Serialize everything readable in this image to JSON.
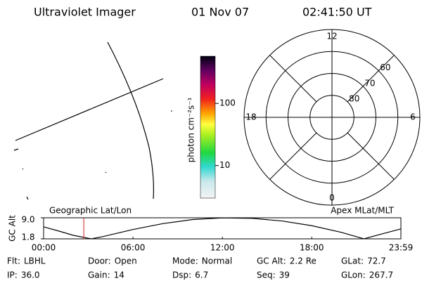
{
  "header": {
    "title": "Ultraviolet Imager",
    "date": "01 Nov 07",
    "time": "02:41:50 UT"
  },
  "colorbar": {
    "label": "photon cm⁻²s⁻¹",
    "scale": "log",
    "lim": [
      3,
      575
    ],
    "ticks": [
      10,
      100
    ]
  },
  "polar": {
    "mlt_labels": [
      12,
      6,
      0,
      18
    ],
    "lat_rings": [
      80,
      70,
      60
    ],
    "lat_limit": 50
  },
  "chart_data": {
    "type": "line",
    "ylabel": "GC Alt",
    "left_title": "Geographic Lat/Lon",
    "right_title": "Apex MLat/MLT",
    "x": [
      0,
      1,
      2,
      3.2,
      4,
      6,
      8,
      10,
      12,
      14,
      16,
      18,
      20,
      21.5,
      22.5,
      23.983
    ],
    "series": [
      {
        "color": "#000000",
        "values": [
          5.9,
          4.5,
          3.0,
          1.8,
          2.6,
          5.0,
          7.0,
          8.4,
          8.95,
          8.8,
          7.9,
          6.3,
          4.0,
          1.8,
          3.2,
          5.2
        ]
      }
    ],
    "xlim": [
      0,
      23.983
    ],
    "xticks": [
      {
        "value": 0,
        "label": "00:00"
      },
      {
        "value": 6,
        "label": "06:00"
      },
      {
        "value": 12,
        "label": "12:00"
      },
      {
        "value": 18,
        "label": "18:00"
      },
      {
        "value": 23.983,
        "label": "23:59"
      }
    ],
    "ylim": [
      1.8,
      9
    ],
    "yticks": [
      {
        "value": 9,
        "label": "9.0"
      },
      1.8
    ],
    "marker_x": 2.697,
    "marker_color": "#d02020"
  },
  "footer": {
    "items": [
      {
        "label": "Flt:",
        "value": "LBHL"
      },
      {
        "label": "Door:",
        "value": "Open"
      },
      {
        "label": "Mode:",
        "value": "Normal"
      },
      {
        "label": "GC Alt:",
        "value": "2.2 Re"
      },
      {
        "label": "GLat:",
        "value": "72.7"
      },
      {
        "label": "IP:",
        "value": "36.0"
      },
      {
        "label": "Gain:",
        "value": "14"
      },
      {
        "label": "Dsp:",
        "value": "6.7"
      },
      {
        "label": "Seq:",
        "value": "39"
      },
      {
        "label": "GLon:",
        "value": "267.7"
      }
    ]
  }
}
